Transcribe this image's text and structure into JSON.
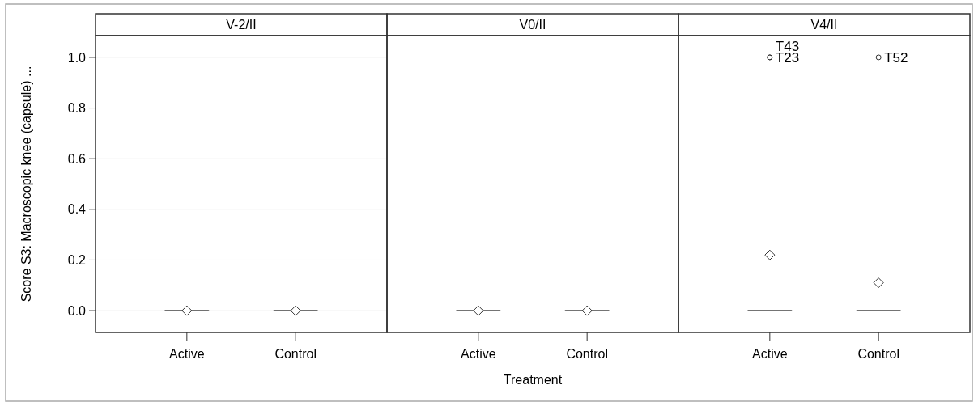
{
  "chart_data": [
    {
      "type": "box",
      "title": "V-2/II",
      "ylabel": "Score S3: Macroscopic knee (capsule) ...",
      "categories": [
        "Active",
        "Control"
      ],
      "color": "#333333",
      "marker": "diamond",
      "grid": "y",
      "ylim": [
        -0.086,
        1.086
      ],
      "yticks": [
        {
          "value": 0,
          "label": "0.0"
        },
        0.2,
        0.4,
        0.6,
        0.8,
        {
          "value": 1,
          "label": "1.0"
        }
      ],
      "boxes": [
        {
          "low": 0,
          "q1": 0,
          "median": 0,
          "q3": 0,
          "high": 0,
          "mean": 0
        },
        {
          "low": 0,
          "q1": 0,
          "median": 0,
          "q3": 0,
          "high": 0,
          "mean": 0
        }
      ]
    },
    {
      "type": "box",
      "title": "V0/II",
      "xlabel": "Treatment",
      "categories": [
        "Active",
        "Control"
      ],
      "color": "#333333",
      "marker": "diamond",
      "grid": "y",
      "tick_labels": "x",
      "ylim": [
        -0.086,
        1.086
      ],
      "boxes": [
        {
          "low": 0,
          "q1": 0,
          "median": 0,
          "q3": 0,
          "high": 0,
          "mean": 0
        },
        {
          "low": 0,
          "q1": 0,
          "median": 0,
          "q3": 0,
          "high": 0,
          "mean": 0
        }
      ]
    },
    {
      "type": "box",
      "title": "V4/II",
      "categories": [
        "Active",
        "Control"
      ],
      "color": "#333333",
      "marker": "diamond",
      "grid": "y",
      "tick_labels": "x",
      "ylim": [
        -0.086,
        1.086
      ],
      "boxes": [
        {
          "low": 0,
          "q1": 0,
          "median": 0,
          "q3": 0,
          "high": 0,
          "mean": 0.22,
          "outliers": [
            1,
            1
          ]
        },
        {
          "low": 0,
          "q1": 0,
          "median": 0,
          "q3": 0,
          "high": 0,
          "mean": 0.11,
          "outliers": [
            1
          ]
        }
      ],
      "annotations": [
        "T23",
        "T43",
        "T52"
      ]
    }
  ]
}
